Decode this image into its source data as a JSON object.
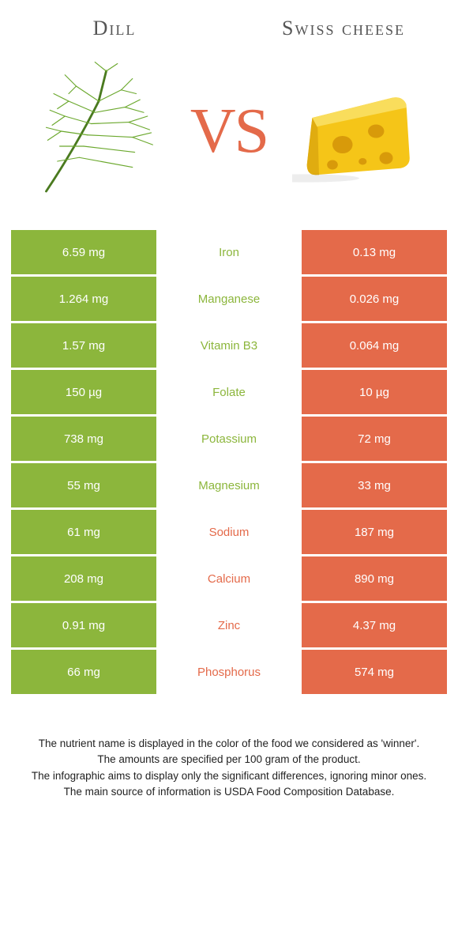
{
  "colors": {
    "left": "#8cb63c",
    "right": "#e46a4a",
    "text_footer": "#222222",
    "title": "#555555",
    "bg": "#ffffff"
  },
  "header": {
    "left_title": "Dill",
    "right_title": "Swiss cheese",
    "vs": "VS"
  },
  "rows": [
    {
      "left": "6.59 mg",
      "mid": "Iron",
      "right": "0.13 mg",
      "winner": "left"
    },
    {
      "left": "1.264 mg",
      "mid": "Manganese",
      "right": "0.026 mg",
      "winner": "left"
    },
    {
      "left": "1.57 mg",
      "mid": "Vitamin B3",
      "right": "0.064 mg",
      "winner": "left"
    },
    {
      "left": "150 µg",
      "mid": "Folate",
      "right": "10 µg",
      "winner": "left"
    },
    {
      "left": "738 mg",
      "mid": "Potassium",
      "right": "72 mg",
      "winner": "left"
    },
    {
      "left": "55 mg",
      "mid": "Magnesium",
      "right": "33 mg",
      "winner": "left"
    },
    {
      "left": "61 mg",
      "mid": "Sodium",
      "right": "187 mg",
      "winner": "right"
    },
    {
      "left": "208 mg",
      "mid": "Calcium",
      "right": "890 mg",
      "winner": "right"
    },
    {
      "left": "0.91 mg",
      "mid": "Zinc",
      "right": "4.37 mg",
      "winner": "right"
    },
    {
      "left": "66 mg",
      "mid": "Phosphorus",
      "right": "574 mg",
      "winner": "right"
    }
  ],
  "footer": {
    "line1": "The nutrient name is displayed in the color of the food we considered as 'winner'.",
    "line2": "The amounts are specified per 100 gram of the product.",
    "line3": "The infographic aims to display only the significant differences, ignoring minor ones.",
    "line4": "The main source of information is USDA Food Composition Database."
  }
}
